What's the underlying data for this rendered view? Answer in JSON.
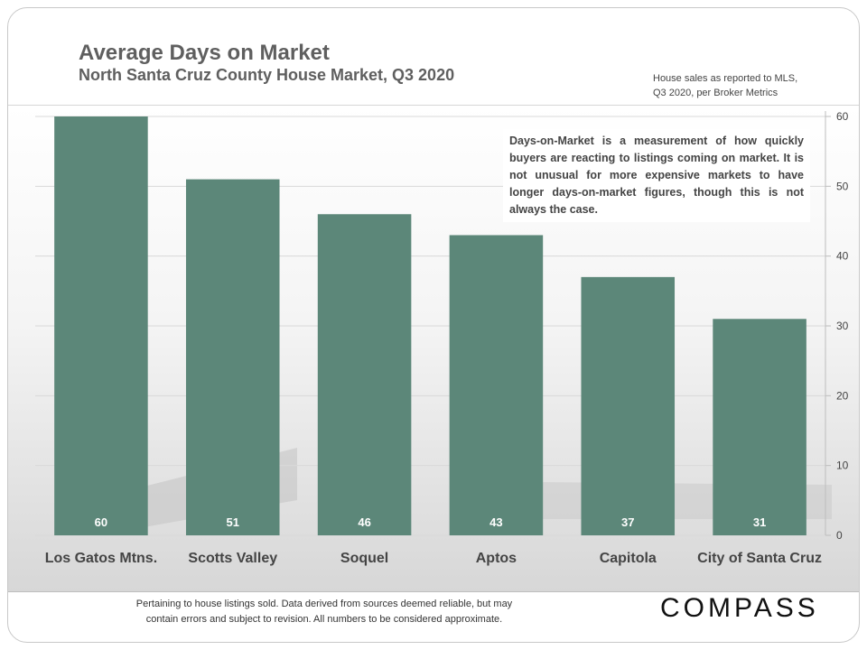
{
  "chart_data": {
    "type": "bar",
    "title": "Average Days on Market",
    "subtitle": "North Santa Cruz County House Market, Q3 2020",
    "categories": [
      "Los Gatos Mtns.",
      "Scotts Valley",
      "Soquel",
      "Aptos",
      "Capitola",
      "City of Santa Cruz"
    ],
    "values": [
      60,
      51,
      46,
      43,
      37,
      31
    ],
    "data_labels": [
      "60",
      "51",
      "46",
      "43",
      "37",
      "31"
    ],
    "ylim": [
      0,
      60
    ],
    "yticks": [
      0,
      10,
      20,
      30,
      40,
      50,
      60
    ],
    "y_axis_position": "right",
    "xlabel": "",
    "ylabel": "",
    "grid": true,
    "bar_color": "#5c8779"
  },
  "source_note": {
    "line1": "House sales as reported to MLS,",
    "line2": "Q3 2020, per Broker Metrics"
  },
  "annotation": "Days-on-Market is a measurement of how quickly buyers are reacting to listings coming on market. It is not unusual for more expensive markets to have longer days-on-market figures, though this is not always the case.",
  "footer": {
    "line1": "Pertaining to house listings sold. Data derived from sources deemed reliable, but may",
    "line2": "contain errors and subject to revision. All numbers to be considered approximate."
  },
  "logo": "COMPASS"
}
